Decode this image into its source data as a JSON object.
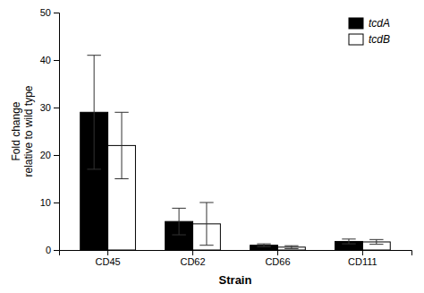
{
  "chart_data": {
    "type": "bar",
    "categories": [
      "CD45",
      "CD62",
      "CD66",
      "CD111"
    ],
    "series": [
      {
        "name": "tcdA",
        "color": "#000000",
        "values": [
          29.0,
          6.0,
          1.0,
          1.8
        ],
        "errors": [
          12.0,
          2.8,
          0.3,
          0.5
        ]
      },
      {
        "name": "tcdB",
        "color": "#ffffff",
        "values": [
          22.0,
          5.5,
          0.6,
          1.7
        ],
        "errors": [
          7.0,
          4.5,
          0.3,
          0.5
        ]
      }
    ],
    "xlabel": "Strain",
    "ylabel": "Fold change\nrelative to wild type",
    "ylim": [
      0,
      50
    ],
    "yticks": [
      0,
      10,
      20,
      30,
      40,
      50
    ],
    "legend": "upper right"
  }
}
